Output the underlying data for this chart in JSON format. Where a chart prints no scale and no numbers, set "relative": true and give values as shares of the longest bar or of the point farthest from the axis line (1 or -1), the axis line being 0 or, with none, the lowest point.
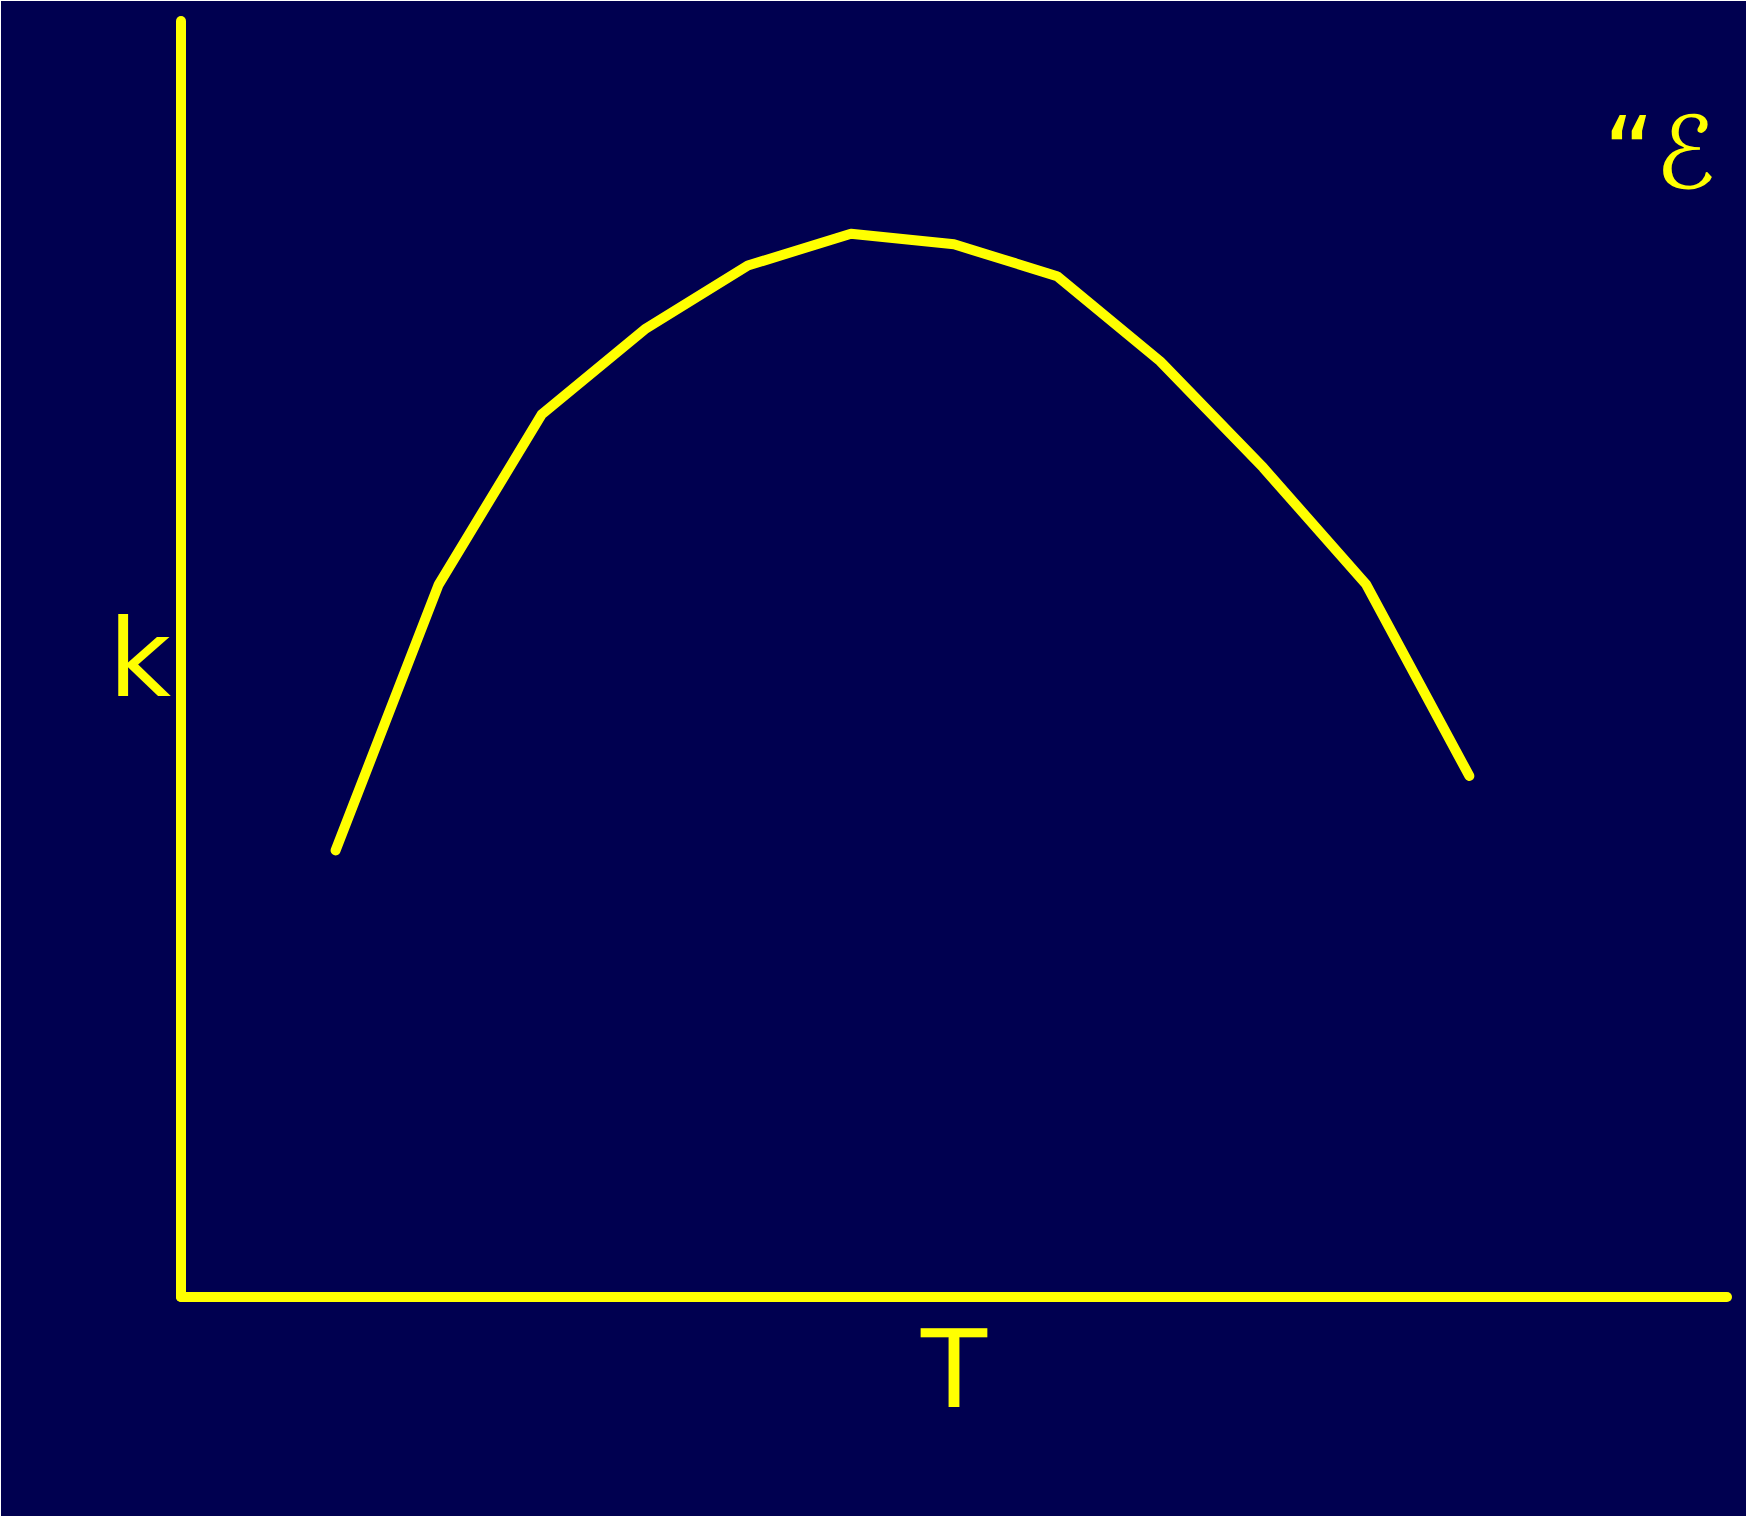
{
  "chart_data": {
    "type": "line",
    "relative": true,
    "xlabel": "T",
    "ylabel": "k",
    "categories": [
      null,
      null,
      null,
      null,
      null,
      null,
      null,
      null,
      null,
      null,
      null,
      null
    ],
    "series": [
      {
        "color": "#ffff00",
        "values": [
          0.42,
          0.67,
          0.83,
          0.91,
          0.97,
          1.0,
          0.99,
          0.96,
          0.88,
          0.78,
          0.67,
          0.49
        ]
      }
    ],
    "annotations": [
      "“ℰ"
    ]
  }
}
